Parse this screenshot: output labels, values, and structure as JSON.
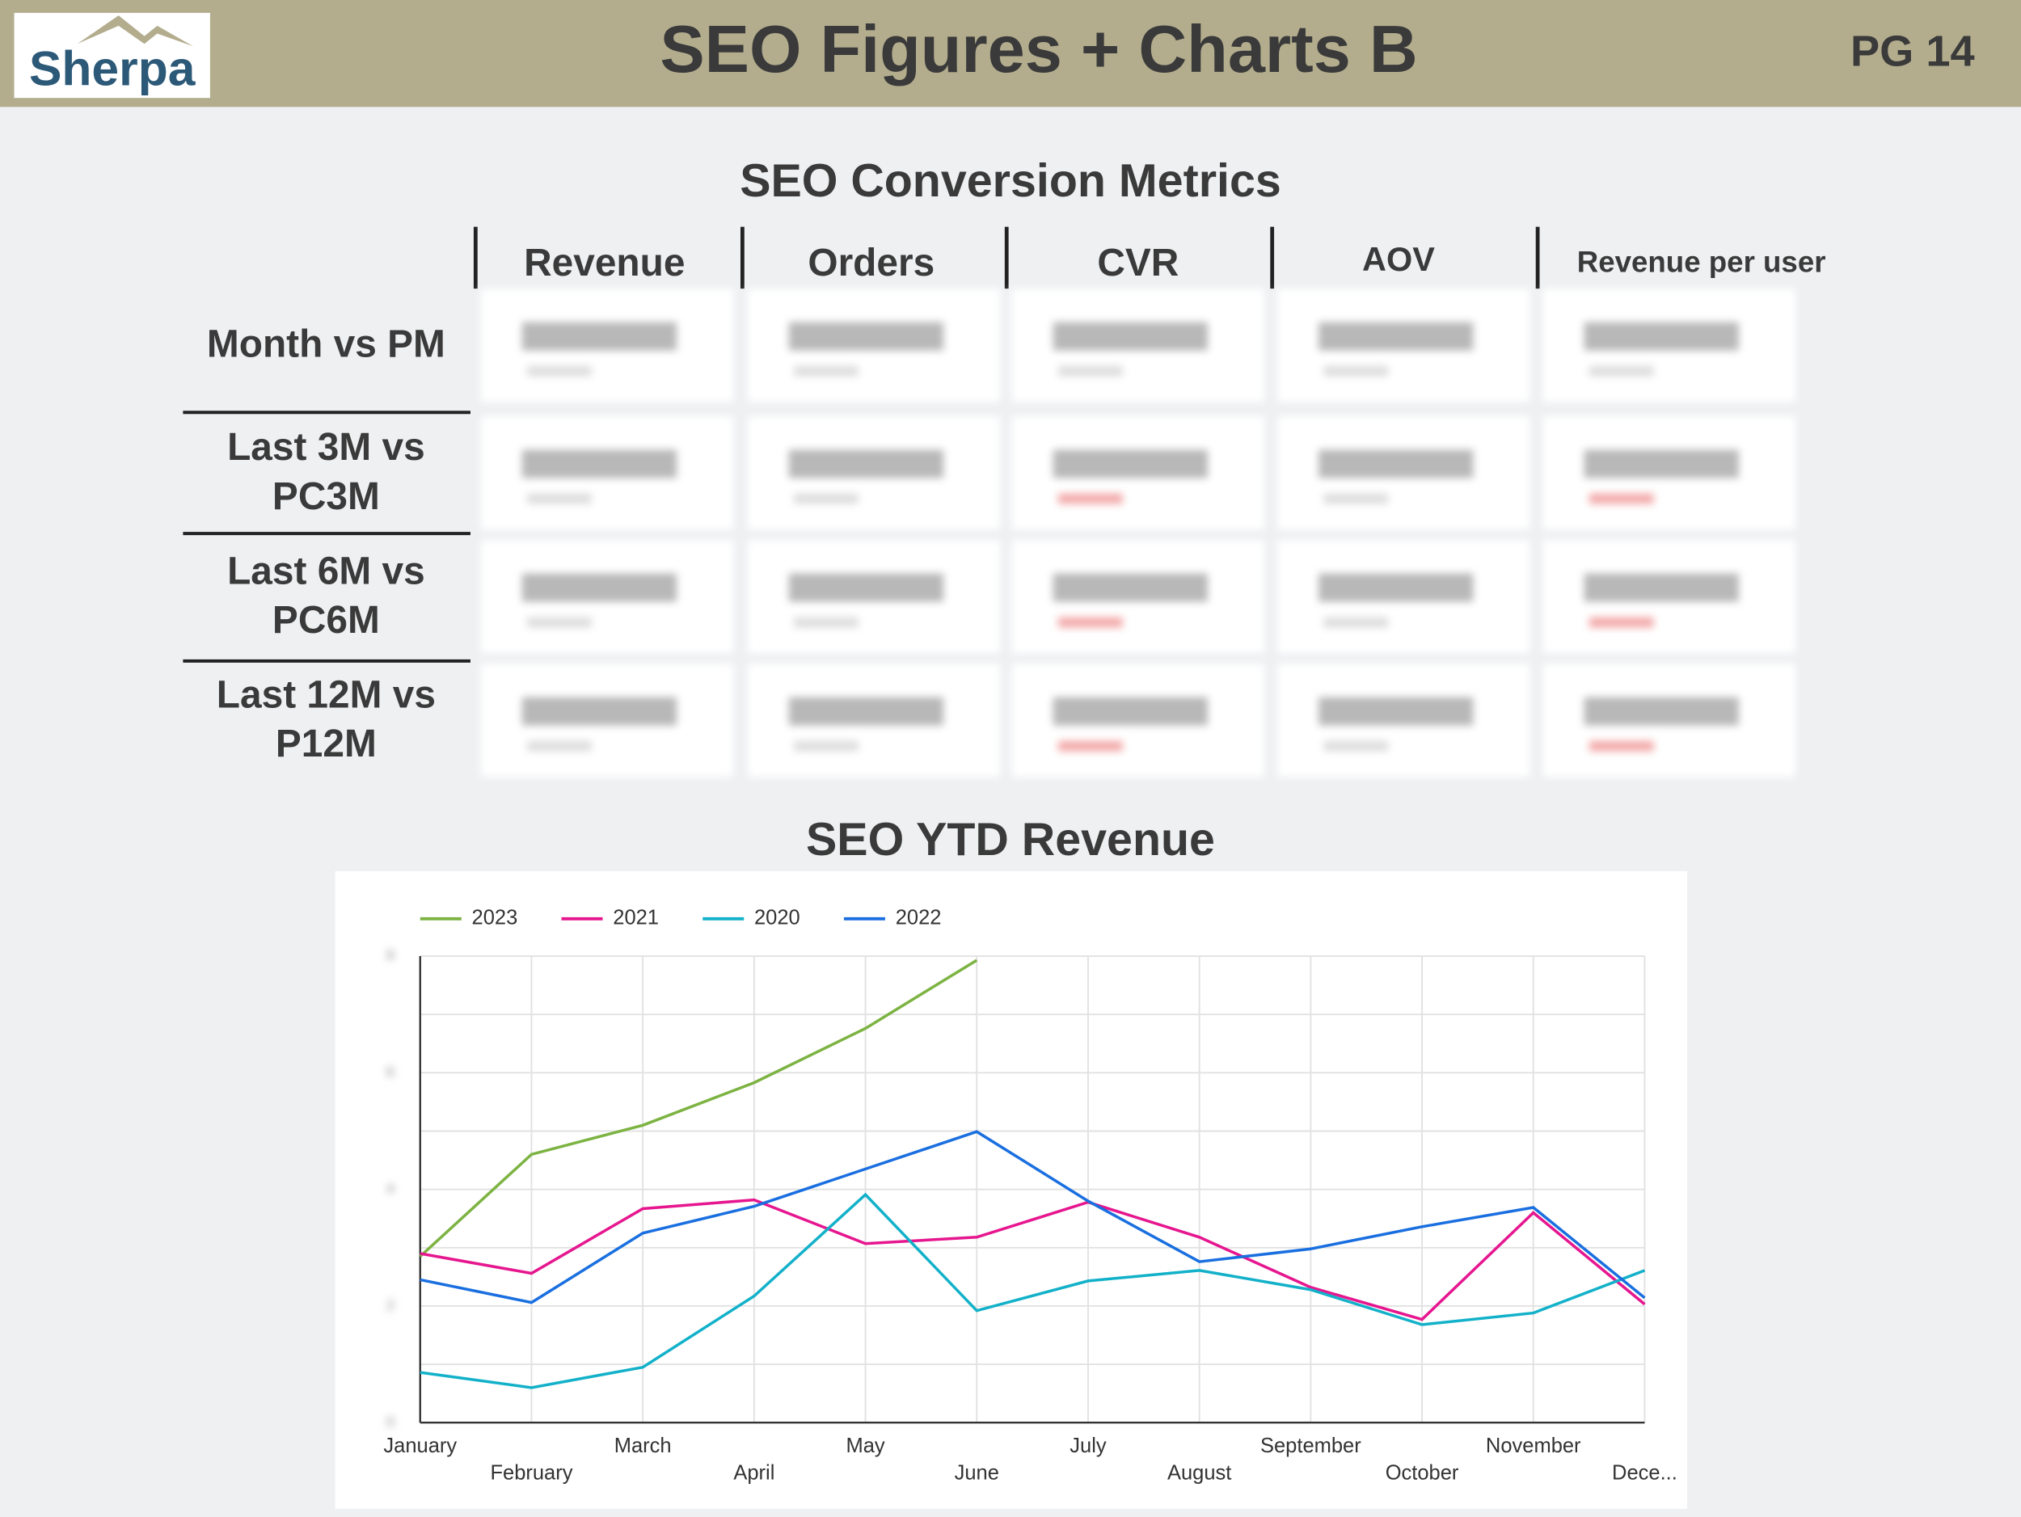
{
  "header": {
    "logo": "Sherpa",
    "title": "SEO Figures + Charts B",
    "page": "PG 14"
  },
  "table": {
    "title": "SEO Conversion Metrics",
    "columns": [
      "Revenue",
      "Orders",
      "CVR",
      "AOV",
      "Revenue per user"
    ],
    "rows": [
      "Month vs PM",
      "Last 3M vs PC3M",
      "Last 6M vs PC6M",
      "Last 12M vs P12M"
    ]
  },
  "chart_data": {
    "type": "line",
    "title": "SEO YTD Revenue",
    "categories": [
      "January",
      "February",
      "March",
      "April",
      "May",
      "June",
      "July",
      "August",
      "September",
      "October",
      "November",
      "Dece..."
    ],
    "series": [
      {
        "name": "2023",
        "color": "#7cb342",
        "values": [
          2.85,
          4.6,
          5.1,
          5.83,
          6.76,
          7.93,
          null,
          null,
          null,
          null,
          null,
          null
        ]
      },
      {
        "name": "2021",
        "color": "#e6168f",
        "values": [
          2.9,
          2.56,
          3.67,
          3.82,
          3.07,
          3.18,
          3.78,
          3.18,
          2.32,
          1.77,
          3.6,
          2.03
        ]
      },
      {
        "name": "2020",
        "color": "#12b1c9",
        "values": [
          0.86,
          0.6,
          0.95,
          2.17,
          3.91,
          1.92,
          2.43,
          2.61,
          2.28,
          1.68,
          1.88,
          2.61
        ]
      },
      {
        "name": "2022",
        "color": "#1a6fe0",
        "values": [
          2.45,
          2.06,
          3.25,
          3.71,
          4.35,
          4.99,
          3.8,
          2.76,
          2.98,
          3.36,
          3.69,
          2.14
        ]
      }
    ],
    "ylim": [
      0,
      8
    ],
    "yticks": [
      0,
      2,
      4,
      6,
      8
    ],
    "minor_yticks": [
      1,
      3,
      5,
      7
    ],
    "grid": true,
    "legend": "top-left"
  }
}
